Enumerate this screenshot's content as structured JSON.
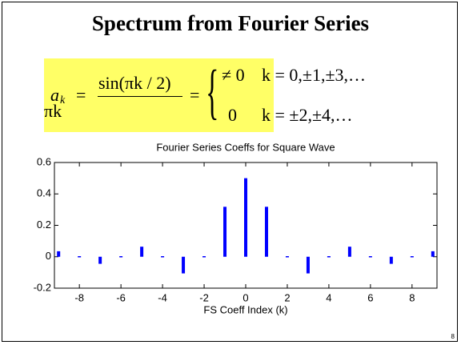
{
  "slide": {
    "title": "Spectrum from Fourier Series",
    "page": "8",
    "formula": {
      "lhs": "a",
      "lhs_sub": "k",
      "eq1": "=",
      "numerator": "sin(πk / 2)",
      "denominator": "πk",
      "eq2": "=",
      "case1_value": "≠ 0",
      "case1_cond": "k = 0,±1,±3,…",
      "case2_value": "0",
      "case2_cond": "k = ±2,±4,…"
    }
  },
  "chart_data": {
    "type": "stem",
    "title": "Fourier Series Coeffs for Square Wave",
    "x_label": "FS Coeff Index (k)",
    "x": [
      -9,
      -8,
      -7,
      -6,
      -5,
      -4,
      -3,
      -2,
      -1,
      0,
      1,
      2,
      3,
      4,
      5,
      6,
      7,
      8,
      9
    ],
    "values": [
      0.035,
      0,
      -0.045,
      0,
      0.064,
      0,
      -0.106,
      0,
      0.318,
      0.5,
      0.318,
      0,
      -0.106,
      0,
      0.064,
      0,
      -0.045,
      0,
      0.035
    ],
    "color": "#0000ff",
    "xlim": [
      -9.2,
      9.2
    ],
    "xticks": [
      -8,
      -6,
      -4,
      -2,
      0,
      2,
      4,
      6,
      8
    ],
    "ylim": [
      -0.2,
      0.6
    ],
    "yticks": [
      -0.2,
      0,
      0.2,
      0.4,
      0.6
    ]
  }
}
